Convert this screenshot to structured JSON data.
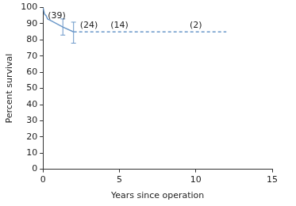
{
  "chart_data": {
    "type": "line",
    "x_label": "Years since operation",
    "y_label": "Percent survival",
    "xlim": [
      0,
      15
    ],
    "xticks": [
      0,
      5,
      10,
      15
    ],
    "ylim": [
      0,
      100
    ],
    "yticks": [
      0,
      10,
      20,
      30,
      40,
      50,
      60,
      70,
      80,
      90,
      100
    ],
    "grid": false,
    "series": [
      {
        "color": "#6b98c9",
        "line_style": "solid",
        "x": [
          0,
          0.05,
          0.1,
          0.2,
          0.3,
          0.5,
          1.3,
          2.0
        ],
        "values": [
          100,
          98,
          96,
          95,
          93,
          92,
          88,
          85
        ],
        "error_low": [
          null,
          null,
          null,
          null,
          null,
          null,
          83,
          78
        ],
        "error_high": [
          null,
          null,
          null,
          null,
          null,
          null,
          93,
          91
        ]
      },
      {
        "color": "#6b98c9",
        "line_style": "dashed",
        "x": [
          2.0,
          12.0
        ],
        "values": [
          85,
          85
        ]
      }
    ],
    "annotations": [
      {
        "text": "(39)",
        "x": 0.9,
        "y": 95
      },
      {
        "text": "(24)",
        "x": 3.0,
        "y": 89
      },
      {
        "text": "(14)",
        "x": 5,
        "y": 89
      },
      {
        "text": "(2)",
        "x": 10,
        "y": 89
      }
    ]
  }
}
